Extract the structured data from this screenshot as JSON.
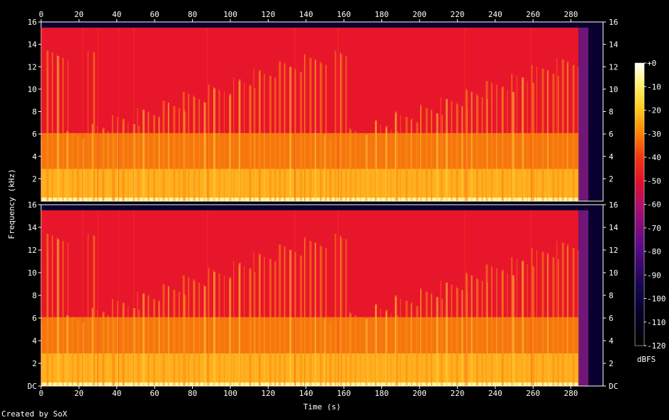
{
  "chart_data": {
    "type": "heatmap",
    "x_axis": {
      "label": "Time (s)",
      "range": [
        0,
        297
      ],
      "ticks": [
        0,
        20,
        40,
        60,
        80,
        100,
        120,
        140,
        160,
        180,
        200,
        220,
        240,
        260,
        280
      ],
      "tick_labels": [
        "0",
        "20",
        "40",
        "60",
        "80",
        "100",
        "120",
        "140",
        "160",
        "180",
        "200",
        "220",
        "240",
        "260",
        "280"
      ]
    },
    "y_axis": {
      "label": "Frequency (kHz)",
      "range": [
        0,
        16
      ],
      "ticks": [
        0,
        2,
        4,
        6,
        8,
        10,
        12,
        14,
        16
      ],
      "tick_labels": [
        "DC",
        "2",
        "4",
        "6",
        "8",
        "10",
        "12",
        "14",
        "16"
      ]
    },
    "colorbar": {
      "label": "dBFS",
      "range": [
        -120,
        0
      ],
      "ticks": [
        0,
        -10,
        -20,
        -30,
        -40,
        -50,
        -60,
        -70,
        -80,
        -90,
        -100,
        -110,
        -120
      ],
      "tick_labels": [
        "+0",
        "-10",
        "-20",
        "-30",
        "-40",
        "-50",
        "-60",
        "-70",
        "-80",
        "-90",
        "-100",
        "-110",
        "-120"
      ]
    },
    "channels": 2,
    "audio_end_s": 284,
    "vertical_tick_marks": [
      0,
      22,
      30,
      41,
      49,
      88,
      134,
      157,
      224,
      259
    ]
  },
  "credit": "Created by SoX"
}
